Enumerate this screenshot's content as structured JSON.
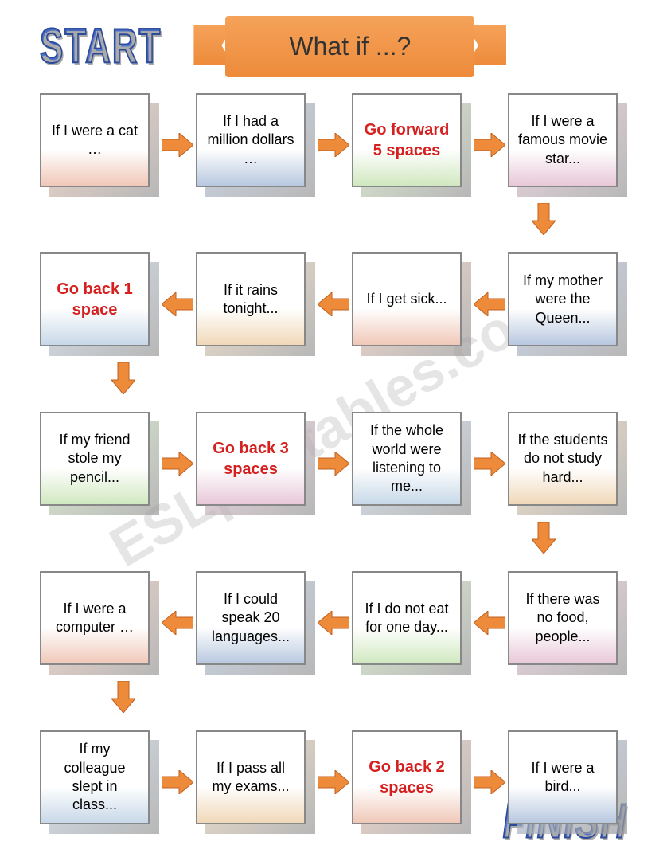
{
  "title": "What if ...?",
  "start_label": "START",
  "finish_label": "FINISH",
  "watermark": "ESLprintables.com",
  "colors": {
    "ribbon": [
      "#f5a25a",
      "#ed8b3a"
    ],
    "arrow": "#ed8b3a",
    "start_finish": "#3b5fb8",
    "special_text": "#d62020",
    "card_border": "#888888"
  },
  "card_gradients": [
    [
      "#ffffff",
      "#f0c8b8"
    ],
    [
      "#ffffff",
      "#b8c8e0"
    ],
    [
      "#ffffff",
      "#d0e8c0"
    ],
    [
      "#ffffff",
      "#e8c8d8"
    ],
    [
      "#ffffff",
      "#c8d8e8"
    ],
    [
      "#ffffff",
      "#f0d8b8"
    ]
  ],
  "rows": [
    {
      "direction": "right",
      "cards": [
        {
          "text": "If I were a cat …",
          "special": false
        },
        {
          "text": "If I had a million dollars …",
          "special": false
        },
        {
          "text": "Go forward 5 spaces",
          "special": true
        },
        {
          "text": "If I were a famous movie star...",
          "special": false
        }
      ]
    },
    {
      "direction": "left",
      "cards": [
        {
          "text": "Go back 1 space",
          "special": true
        },
        {
          "text": "If it rains tonight...",
          "special": false
        },
        {
          "text": "If I get sick...",
          "special": false
        },
        {
          "text": "If my mother were the Queen...",
          "special": false
        }
      ]
    },
    {
      "direction": "right",
      "cards": [
        {
          "text": "If my friend stole my pencil...",
          "special": false
        },
        {
          "text": "Go back 3 spaces",
          "special": true
        },
        {
          "text": "If the whole world were listening to me...",
          "special": false
        },
        {
          "text": "If the students do not study hard...",
          "special": false
        }
      ]
    },
    {
      "direction": "left",
      "cards": [
        {
          "text": "If I were a computer …",
          "special": false
        },
        {
          "text": "If I could speak 20 languages...",
          "special": false
        },
        {
          "text": "If I do not eat for one day...",
          "special": false
        },
        {
          "text": "If there was no food, people...",
          "special": false
        }
      ]
    },
    {
      "direction": "right",
      "cards": [
        {
          "text": "If my colleague slept in class...",
          "special": false
        },
        {
          "text": "If I pass all my exams...",
          "special": false
        },
        {
          "text": "Go back 2 spaces",
          "special": true
        },
        {
          "text": "If I were a bird...",
          "special": false
        }
      ]
    }
  ],
  "fonts": {
    "card_text_size": 18,
    "title_size": 32,
    "badge_size": 44
  }
}
